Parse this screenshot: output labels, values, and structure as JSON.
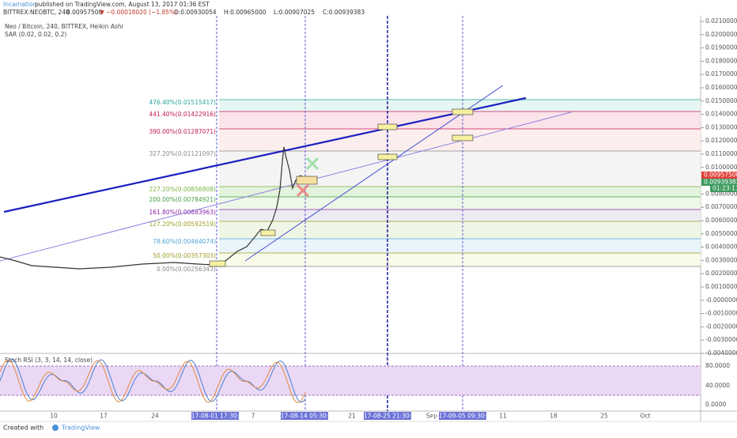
{
  "header": {
    "author": "Incarnation",
    "published": "published on TradingView.com, August 13, 2017 01:36 EST"
  },
  "quote": {
    "symbol": "BITTREX:NEOBTC, 240",
    "price": "0.00957500",
    "change": "▼ −0.00018020 (−1.85%)",
    "open": "O:0.00930054",
    "high": "H:0.00965000",
    "low": "L:0.00907025",
    "close": "C:0.00939383"
  },
  "legend": [
    "Neo / Bitcoin, 240, BITTREX, Heikin Ashi",
    "SAR (0.02, 0.02, 0.2)"
  ],
  "price_axis": {
    "labels": [
      "0.02100000",
      "0.02000000",
      "0.01900000",
      "0.01800000",
      "0.01700000",
      "0.01600000",
      "0.01500000",
      "0.01400000",
      "0.01300000",
      "0.01200000",
      "0.01100000",
      "0.01000000",
      "0.00800000",
      "0.00700000",
      "0.00600000",
      "0.00500000",
      "0.00400000",
      "0.00300000",
      "0.00200000",
      "0.00100000",
      "-0.00000000",
      "-0.00100000",
      "-0.00200000",
      "-0.00300000",
      "-0.00400000"
    ],
    "last_price": "0.00957500",
    "close_price": "0.00939383",
    "countdown": "01:23:11"
  },
  "fib_levels": [
    "476.40%(0.01515417)",
    "441.40%(0.01422916)",
    "390.00%(0.01287071)",
    "327.20%(0.01121097)",
    "227.20%(0.00856808)",
    "200.00%(0.00784921)",
    "161.80%(0.00683963)",
    "127.20%(0.00592519)",
    "78.60%(0.00464074)",
    "50.00%(0.00357303)",
    "0.00%(0.00256343)"
  ],
  "oscillator": {
    "title": "Stoch RSI (3, 3, 14, 14, close)",
    "labels": [
      "80.0000",
      "40.0000",
      "0.0000"
    ]
  },
  "time_axis": {
    "labels": [
      "10",
      "17",
      "24",
      "2017-08-01 17:30:00",
      "7",
      "2017-08-14 05:30:00",
      "21",
      "2017-08-25 21:30:00",
      "Sep",
      "2017-09-05 09:30:00",
      "11",
      "18",
      "25",
      "Oct"
    ]
  },
  "footer": {
    "created": "Created with",
    "brand": "TradingView"
  }
}
